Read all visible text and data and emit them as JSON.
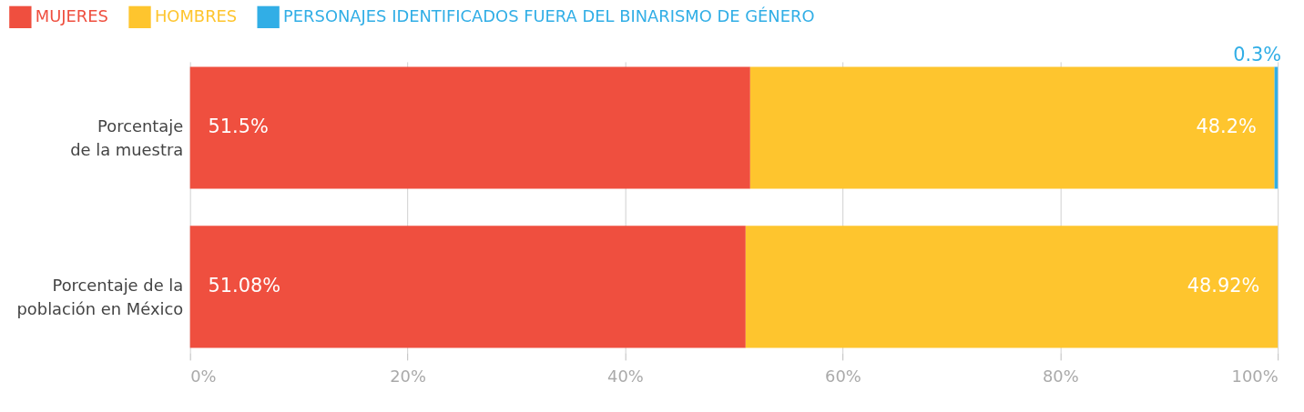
{
  "chart_data": {
    "type": "bar",
    "orientation": "horizontal",
    "stacked": true,
    "categories": [
      "Porcentaje de la muestra",
      "Porcentaje de la población en México"
    ],
    "series": [
      {
        "name": "MUJERES",
        "color": "#ef4f3f",
        "values": [
          51.5,
          51.08
        ],
        "value_labels": [
          "51.5%",
          "51.08%"
        ]
      },
      {
        "name": "HOMBRES",
        "color": "#fec52e",
        "values": [
          48.2,
          48.92
        ],
        "value_labels": [
          "48.2%",
          "48.92%"
        ]
      },
      {
        "name": "PERSONAJES IDENTIFICADOS FUERA DEL BINARISMO DE GÉNERO",
        "color": "#31aee6",
        "values": [
          0.3,
          null
        ],
        "value_labels": [
          "0.3%",
          null
        ]
      }
    ],
    "xlim": [
      0,
      100
    ],
    "xticks": [
      {
        "value": 0,
        "label": "0%"
      },
      {
        "value": 20,
        "label": "20%"
      },
      {
        "value": 40,
        "label": "40%"
      },
      {
        "value": 60,
        "label": "60%"
      },
      {
        "value": 80,
        "label": "80%"
      },
      {
        "value": 100,
        "label": "100%"
      }
    ],
    "grid": "x",
    "legend": "top left"
  }
}
